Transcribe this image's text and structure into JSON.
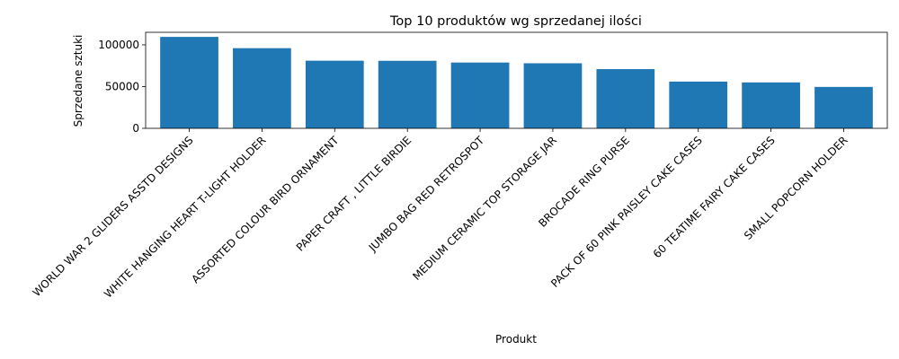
{
  "chart_data": {
    "type": "bar",
    "title": "Top 10 produktów wg sprzedanej ilości",
    "xlabel": "Produkt",
    "ylabel": "Sprzedane sztuki",
    "categories": [
      "WORLD WAR 2 GLIDERS ASSTD DESIGNS",
      "WHITE HANGING HEART T-LIGHT HOLDER",
      "ASSORTED COLOUR BIRD ORNAMENT",
      "PAPER CRAFT , LITTLE BIRDIE",
      "JUMBO BAG RED RETROSPOT",
      "MEDIUM CERAMIC TOP STORAGE JAR",
      "BROCADE RING PURSE",
      "PACK OF 60 PINK PAISLEY CAKE CASES",
      "60 TEATIME FAIRY CAKE CASES",
      "SMALL POPCORN HOLDER"
    ],
    "values": [
      109500,
      96000,
      81000,
      80900,
      78800,
      77900,
      70900,
      56000,
      55000,
      49600
    ],
    "ylim": [
      0,
      115000
    ],
    "yticks": [
      0,
      50000,
      100000
    ],
    "ytick_labels": [
      "0",
      "50000",
      "100000"
    ],
    "bar_color": "#1f77b4",
    "grid": false,
    "legend": "none"
  }
}
